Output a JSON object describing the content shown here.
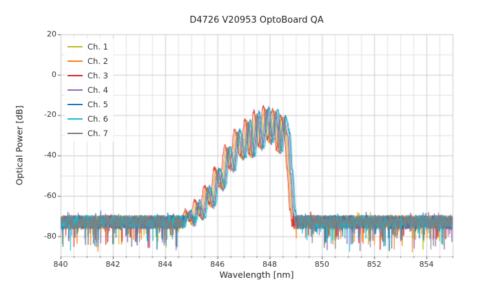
{
  "figure": {
    "title": "D4726 V20953 OptoBoard QA",
    "background": "#ffffff",
    "grid_color_major": "#c9c9c9",
    "grid_color_minor": "#e0e0e0",
    "tick_color": "#555555"
  },
  "chart_data": {
    "type": "line",
    "title": "D4726 V20953 OptoBoard QA",
    "xlabel": "Wavelength [nm]",
    "ylabel": "Optical Power [dB]",
    "xlim": [
      840,
      855
    ],
    "ylim": [
      -90,
      20
    ],
    "xticks": [
      840,
      842,
      844,
      846,
      848,
      850,
      852,
      854
    ],
    "yticks": [
      20,
      0,
      -20,
      -40,
      -60,
      -80
    ],
    "x_minor_step_nm": 0.5,
    "y_minor_step_db": 10,
    "grid": true,
    "legend_position": "upper left",
    "description": "Optical output spectra of 7 channels; noise floor near -73 dB with random dips to -88 dB, and a fringed emission peak between 844.6 and 849.0 nm reaching about -17 dB near 847.9 nm.",
    "noise_floor_db": -73,
    "noise_amplitude_db": 3.5,
    "noise_spike_depth_db": 12,
    "samples_per_nm": 100,
    "seed": 20953,
    "envelope_db": [
      [
        840.0,
        -100
      ],
      [
        844.25,
        -100
      ],
      [
        844.6,
        -79
      ],
      [
        844.75,
        -72
      ],
      [
        844.9,
        -68
      ],
      [
        845.05,
        -74
      ],
      [
        845.25,
        -63
      ],
      [
        845.42,
        -71
      ],
      [
        845.62,
        -56
      ],
      [
        845.82,
        -65
      ],
      [
        846.0,
        -47
      ],
      [
        846.2,
        -56
      ],
      [
        846.4,
        -36
      ],
      [
        846.58,
        -47
      ],
      [
        846.78,
        -28
      ],
      [
        846.98,
        -41
      ],
      [
        847.18,
        -23
      ],
      [
        847.33,
        -40
      ],
      [
        847.52,
        -19
      ],
      [
        847.68,
        -36
      ],
      [
        847.88,
        -17
      ],
      [
        848.03,
        -33
      ],
      [
        848.23,
        -18
      ],
      [
        848.38,
        -38
      ],
      [
        848.53,
        -21
      ],
      [
        848.68,
        -29
      ],
      [
        848.78,
        -48
      ],
      [
        848.9,
        -68
      ],
      [
        849.0,
        -78
      ],
      [
        849.1,
        -100
      ],
      [
        855.0,
        -100
      ]
    ],
    "series": [
      {
        "name": "Ch. 1",
        "color": "#bcbd22",
        "x_offset_nm": -0.02,
        "y_offset_db": -0.5
      },
      {
        "name": "Ch. 2",
        "color": "#ff7f0e",
        "x_offset_nm": -0.07,
        "y_offset_db": 0.0
      },
      {
        "name": "Ch. 3",
        "color": "#d62728",
        "x_offset_nm": -0.12,
        "y_offset_db": 1.0
      },
      {
        "name": "Ch. 4",
        "color": "#9467bd",
        "x_offset_nm": 0.03,
        "y_offset_db": -1.0
      },
      {
        "name": "Ch. 5",
        "color": "#1f77b4",
        "x_offset_nm": 0.07,
        "y_offset_db": 0.5
      },
      {
        "name": "Ch. 6",
        "color": "#17becf",
        "x_offset_nm": 0.11,
        "y_offset_db": 0.0
      },
      {
        "name": "Ch. 7",
        "color": "#7f7f7f",
        "x_offset_nm": 0.0,
        "y_offset_db": -0.5
      }
    ]
  }
}
